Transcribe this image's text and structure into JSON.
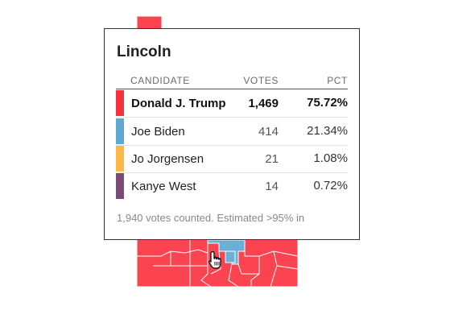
{
  "map": {
    "colors": {
      "republican": "#fb4450",
      "democrat": "#6ab0d6",
      "border": "#ffffff"
    }
  },
  "tooltip": {
    "county": "Lincoln",
    "headers": {
      "candidate": "CANDIDATE",
      "votes": "VOTES",
      "pct": "PCT"
    },
    "candidates": [
      {
        "name": "Donald J. Trump",
        "votes": "1,469",
        "pct": "75.72%",
        "color": "#f5333f",
        "winner": true
      },
      {
        "name": "Joe Biden",
        "votes": "414",
        "pct": "21.34%",
        "color": "#5ea9d3",
        "winner": false
      },
      {
        "name": "Jo Jorgensen",
        "votes": "21",
        "pct": "1.08%",
        "color": "#fbb848",
        "winner": false
      },
      {
        "name": "Kanye West",
        "votes": "14",
        "pct": "0.72%",
        "color": "#7b4b78",
        "winner": false
      }
    ],
    "footer": "1,940 votes counted. Estimated >95% in"
  },
  "cursor": {
    "icon": "hand-pointer-icon"
  }
}
